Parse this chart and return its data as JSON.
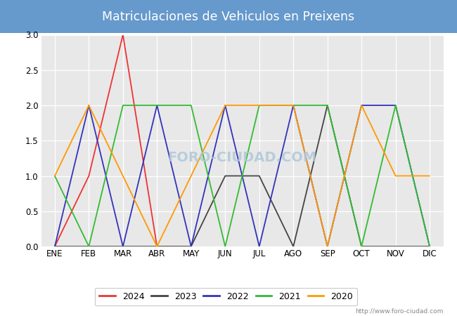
{
  "title": "Matriculaciones de Vehiculos en Preixens",
  "months": [
    "ENE",
    "FEB",
    "MAR",
    "ABR",
    "MAY",
    "JUN",
    "JUL",
    "AGO",
    "SEP",
    "OCT",
    "NOV",
    "DIC"
  ],
  "series": {
    "2024": [
      0,
      1,
      3,
      0,
      0,
      null,
      null,
      null,
      null,
      null,
      null,
      null
    ],
    "2023": [
      0,
      0,
      0,
      0,
      0,
      1,
      1,
      0,
      2,
      0,
      0,
      0
    ],
    "2022": [
      0,
      2,
      0,
      2,
      0,
      2,
      0,
      2,
      0,
      2,
      2,
      0
    ],
    "2021": [
      1,
      0,
      2,
      2,
      2,
      0,
      2,
      2,
      2,
      0,
      2,
      0
    ],
    "2020": [
      1,
      2,
      1,
      0,
      1,
      2,
      2,
      2,
      0,
      2,
      1,
      1
    ]
  },
  "colors": {
    "2024": "#EE3333",
    "2023": "#444444",
    "2022": "#3333BB",
    "2021": "#33BB33",
    "2020": "#FF9900"
  },
  "ylim": [
    0,
    3.0
  ],
  "yticks": [
    0.0,
    0.5,
    1.0,
    1.5,
    2.0,
    2.5,
    3.0
  ],
  "title_bg_color": "#6699CC",
  "title_text_color": "#FFFFFF",
  "plot_bg_color": "#E8E8E8",
  "grid_color": "#FFFFFF",
  "watermark_text": "FORO-CIUDAD.COM",
  "watermark_url": "http://www.foro-ciudad.com",
  "watermark_color": "#B0C8D8",
  "fig_bg_color": "#FFFFFF"
}
